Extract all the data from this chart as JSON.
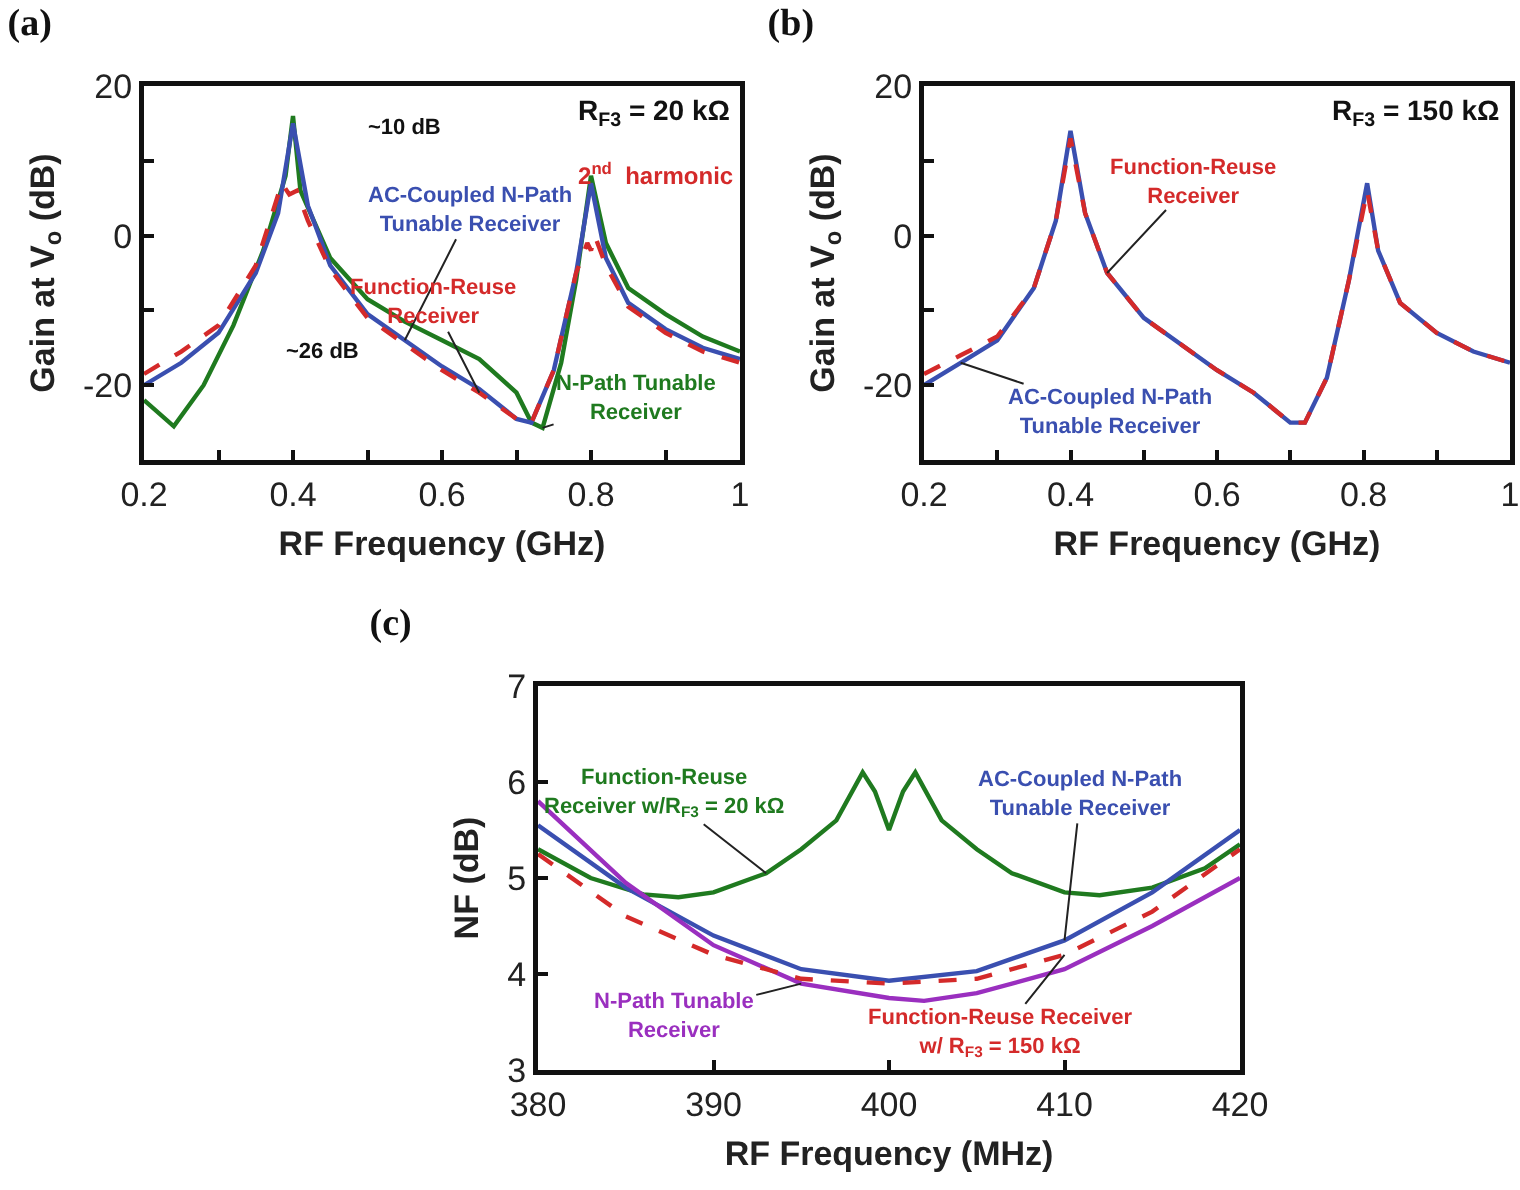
{
  "chart_data": [
    {
      "type": "line",
      "title": "(a)",
      "xlabel": "RF Frequency (GHz)",
      "ylabel": "Gain at V$_{o}$ (dB)",
      "xlim": [
        0.2,
        1
      ],
      "ylim": [
        -30,
        20
      ],
      "xticks": [
        0.2,
        {
          "value": 0.3,
          "label": null
        },
        0.4,
        {
          "value": 0.5,
          "label": null
        },
        0.6,
        {
          "value": 0.7,
          "label": null
        },
        0.8,
        {
          "value": 0.9,
          "label": null
        },
        1
      ],
      "yticks": [
        {
          "value": -30,
          "label": null
        },
        -20,
        {
          "value": -10,
          "label": null
        },
        0,
        {
          "value": 10,
          "label": null
        },
        20
      ],
      "grid": false,
      "legend": false,
      "line_style": "solid",
      "annotations": [
        "R$_{F3}$ = 20 kΩ",
        "2$^{nd}$  harmonic",
        "~10 dB",
        "~26 dB"
      ],
      "series": [
        {
          "name": "N-Path Tunable Receiver",
          "color": "#1f7a1f",
          "x": [
            0.2,
            0.24,
            0.28,
            0.32,
            0.36,
            0.39,
            0.4,
            0.41,
            0.45,
            0.5,
            0.55,
            0.6,
            0.65,
            0.7,
            0.72,
            0.735,
            0.76,
            0.78,
            0.8,
            0.82,
            0.85,
            0.9,
            0.95,
            1
          ],
          "values": [
            -22,
            -25.5,
            -20,
            -12,
            -2,
            8,
            16,
            6,
            -3,
            -8.5,
            -11.5,
            -14,
            -16.5,
            -21,
            -25,
            -25.7,
            -17,
            -6,
            8,
            -1,
            -7,
            -10.5,
            -13.5,
            -15.5
          ]
        },
        {
          "name": "AC-Coupled N-Path Tunable Receiver",
          "color": "#3a4fb0",
          "x": [
            0.2,
            0.25,
            0.3,
            0.35,
            0.38,
            0.4,
            0.42,
            0.45,
            0.5,
            0.55,
            0.6,
            0.65,
            0.7,
            0.72,
            0.75,
            0.78,
            0.8,
            0.82,
            0.85,
            0.9,
            0.95,
            1
          ],
          "values": [
            -20,
            -17,
            -13,
            -5,
            3,
            15,
            4,
            -4,
            -10.5,
            -14,
            -17.5,
            -20.5,
            -24.5,
            -25,
            -18,
            -5,
            7,
            -3,
            -9,
            -12.5,
            -15,
            -16.5
          ]
        },
        {
          "name": "Function-Reuse Receiver",
          "color": "#d42a2a",
          "line_style": "dashed",
          "x": [
            0.2,
            0.25,
            0.3,
            0.35,
            0.385,
            0.395,
            0.405,
            0.42,
            0.45,
            0.5,
            0.55,
            0.6,
            0.65,
            0.7,
            0.72,
            0.75,
            0.78,
            0.795,
            0.8,
            0.805,
            0.82,
            0.85,
            0.9,
            0.95,
            1
          ],
          "values": [
            -18.5,
            -15.5,
            -12,
            -4,
            7,
            5.5,
            6,
            2,
            -4.5,
            -11,
            -14.5,
            -18,
            -21,
            -24.5,
            -25,
            -18,
            -5,
            -1,
            -2,
            0,
            -4,
            -9.5,
            -13,
            -15.5,
            -17
          ]
        }
      ]
    },
    {
      "type": "line",
      "title": "(b)",
      "xlabel": "RF Frequency (GHz)",
      "ylabel": "Gain at V$_{o}$ (dB)",
      "xlim": [
        0.2,
        1
      ],
      "ylim": [
        -30,
        20
      ],
      "xticks": [
        0.2,
        {
          "value": 0.3,
          "label": null
        },
        0.4,
        {
          "value": 0.5,
          "label": null
        },
        0.6,
        {
          "value": 0.7,
          "label": null
        },
        0.8,
        {
          "value": 0.9,
          "label": null
        },
        1
      ],
      "yticks": [
        {
          "value": -30,
          "label": null
        },
        -20,
        {
          "value": -10,
          "label": null
        },
        0,
        {
          "value": 10,
          "label": null
        },
        20
      ],
      "grid": false,
      "legend": false,
      "line_style": "solid",
      "annotations": [
        "R$_{F3}$ = 150 kΩ"
      ],
      "series": [
        {
          "name": "AC-Coupled N-Path Tunable Receiver",
          "color": "#3a4fb0",
          "x": [
            0.2,
            0.25,
            0.3,
            0.35,
            0.38,
            0.4,
            0.42,
            0.45,
            0.5,
            0.55,
            0.6,
            0.65,
            0.7,
            0.72,
            0.75,
            0.78,
            0.805,
            0.82,
            0.85,
            0.9,
            0.95,
            1
          ],
          "values": [
            -20,
            -17,
            -14,
            -7,
            2,
            14,
            3,
            -5,
            -11,
            -14.5,
            -18,
            -21,
            -25,
            -25,
            -19,
            -6,
            7,
            -2,
            -9,
            -13,
            -15.5,
            -17
          ]
        },
        {
          "name": "Function-Reuse Receiver",
          "color": "#d42a2a",
          "line_style": "dashed",
          "x": [
            0.2,
            0.25,
            0.3,
            0.35,
            0.38,
            0.4,
            0.42,
            0.45,
            0.5,
            0.55,
            0.6,
            0.65,
            0.7,
            0.72,
            0.75,
            0.78,
            0.805,
            0.82,
            0.85,
            0.9,
            0.95,
            1
          ],
          "values": [
            -18.5,
            -16,
            -13.5,
            -7,
            2,
            13,
            3,
            -5,
            -11,
            -14.5,
            -18,
            -21,
            -25,
            -25,
            -19,
            -6,
            6,
            -2,
            -9,
            -13,
            -15.5,
            -17
          ]
        }
      ]
    },
    {
      "type": "line",
      "title": "(c)",
      "xlabel": "RF Frequency (MHz)",
      "ylabel": "NF (dB)",
      "xlim": [
        380,
        420
      ],
      "ylim": [
        3,
        7
      ],
      "xticks": [
        380,
        390,
        400,
        410,
        420
      ],
      "yticks": [
        3,
        4,
        5,
        6,
        7
      ],
      "grid": false,
      "legend": false,
      "line_style": "solid",
      "series": [
        {
          "name": "Function-Reuse Receiver w/R$_{F3}$ = 20 kΩ",
          "color": "#1f7a1f",
          "x": [
            380,
            383,
            386,
            388,
            390,
            393,
            395,
            397,
            398.5,
            399.2,
            400,
            400.8,
            401.5,
            403,
            405,
            407,
            410,
            412,
            415,
            418,
            420
          ],
          "values": [
            5.3,
            5.0,
            4.83,
            4.8,
            4.85,
            5.05,
            5.3,
            5.6,
            6.1,
            5.9,
            5.5,
            5.9,
            6.1,
            5.6,
            5.3,
            5.05,
            4.85,
            4.82,
            4.9,
            5.1,
            5.35
          ]
        },
        {
          "name": "AC-Coupled N-Path Tunable Receiver",
          "color": "#3a4fb0",
          "x": [
            380,
            385,
            390,
            395,
            400,
            405,
            410,
            415,
            420
          ],
          "values": [
            5.55,
            4.9,
            4.4,
            4.05,
            3.93,
            4.03,
            4.35,
            4.85,
            5.5
          ]
        },
        {
          "name": "N-Path Tunable Receiver",
          "color": "#9a2fbf",
          "x": [
            380,
            385,
            390,
            395,
            400,
            402,
            405,
            410,
            415,
            420
          ],
          "values": [
            5.8,
            4.95,
            4.3,
            3.9,
            3.75,
            3.72,
            3.8,
            4.05,
            4.5,
            5.0
          ]
        },
        {
          "name": "Function-Reuse Receiver w/ R$_{F3}$ = 150 kΩ",
          "color": "#d42a2a",
          "line_style": "dashed",
          "x": [
            380,
            385,
            390,
            395,
            400,
            405,
            410,
            415,
            420
          ],
          "values": [
            5.25,
            4.6,
            4.2,
            3.95,
            3.9,
            3.95,
            4.2,
            4.65,
            5.3
          ]
        }
      ]
    }
  ]
}
